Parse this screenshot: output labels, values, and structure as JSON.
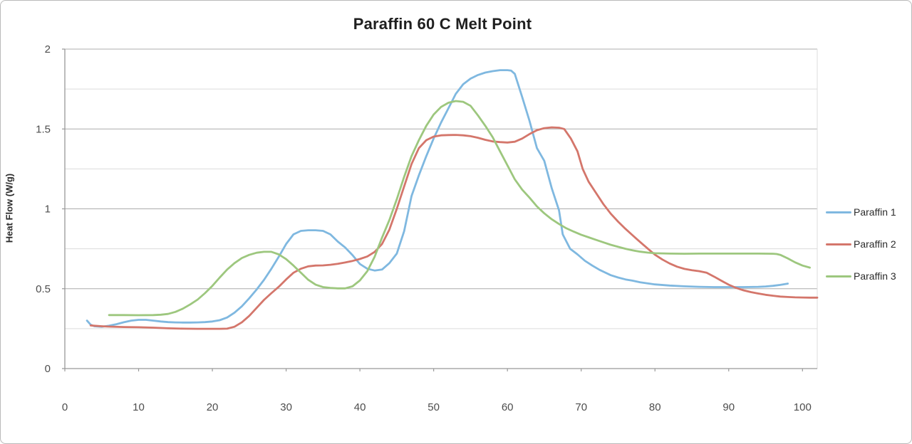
{
  "chart_data": {
    "type": "line",
    "title": "Paraffin 60 C Melt Point",
    "xlabel": "",
    "ylabel": "Heat Flow (W/g)",
    "xlim": [
      0,
      102
    ],
    "ylim": [
      0,
      2
    ],
    "grid": "horizontal, minor every 0.25, major every 0.5",
    "legend_position": "right",
    "x_ticks": [
      0,
      10,
      20,
      30,
      40,
      50,
      60,
      70,
      80,
      90,
      100
    ],
    "y_ticks": [
      {
        "value": 0,
        "label": "0"
      },
      {
        "value": 0.5,
        "label": "0.5"
      },
      {
        "value": 1,
        "label": "1"
      },
      {
        "value": 1.5,
        "label": "1.5"
      },
      {
        "value": 2,
        "label": "2"
      }
    ],
    "minor_y_gridlines": [
      0.25,
      0.75,
      1.25,
      1.75
    ],
    "colors": {
      "axis": "#999999",
      "major_grid": "#acacac",
      "minor_grid": "#dcdcdc",
      "tick_text": "#4d4d4d"
    },
    "series": [
      {
        "name": "Paraffin 1",
        "color": "#7fb8e0",
        "points": [
          [
            3,
            0.3
          ],
          [
            3.5,
            0.275
          ],
          [
            4,
            0.265
          ],
          [
            5,
            0.262
          ],
          [
            6,
            0.268
          ],
          [
            7,
            0.278
          ],
          [
            8,
            0.29
          ],
          [
            9,
            0.3
          ],
          [
            10,
            0.305
          ],
          [
            11,
            0.305
          ],
          [
            12,
            0.3
          ],
          [
            13,
            0.295
          ],
          [
            14,
            0.291
          ],
          [
            15,
            0.289
          ],
          [
            16,
            0.288
          ],
          [
            17,
            0.288
          ],
          [
            18,
            0.289
          ],
          [
            19,
            0.291
          ],
          [
            20,
            0.295
          ],
          [
            21,
            0.303
          ],
          [
            22,
            0.32
          ],
          [
            23,
            0.35
          ],
          [
            24,
            0.39
          ],
          [
            25,
            0.44
          ],
          [
            26,
            0.495
          ],
          [
            27,
            0.555
          ],
          [
            28,
            0.625
          ],
          [
            29,
            0.7
          ],
          [
            30,
            0.78
          ],
          [
            31,
            0.84
          ],
          [
            32,
            0.862
          ],
          [
            33,
            0.866
          ],
          [
            34,
            0.866
          ],
          [
            35,
            0.862
          ],
          [
            36,
            0.84
          ],
          [
            37,
            0.795
          ],
          [
            38,
            0.758
          ],
          [
            39,
            0.71
          ],
          [
            40,
            0.655
          ],
          [
            41,
            0.625
          ],
          [
            42,
            0.614
          ],
          [
            43,
            0.62
          ],
          [
            44,
            0.66
          ],
          [
            45,
            0.72
          ],
          [
            46,
            0.86
          ],
          [
            47,
            1.08
          ],
          [
            48,
            1.21
          ],
          [
            49,
            1.33
          ],
          [
            50,
            1.44
          ],
          [
            51,
            1.54
          ],
          [
            52,
            1.63
          ],
          [
            53,
            1.72
          ],
          [
            54,
            1.78
          ],
          [
            55,
            1.815
          ],
          [
            56,
            1.838
          ],
          [
            57,
            1.853
          ],
          [
            58,
            1.862
          ],
          [
            59,
            1.868
          ],
          [
            60,
            1.868
          ],
          [
            60.5,
            1.865
          ],
          [
            61,
            1.845
          ],
          [
            62,
            1.7
          ],
          [
            63,
            1.55
          ],
          [
            64,
            1.38
          ],
          [
            65,
            1.3
          ],
          [
            66,
            1.13
          ],
          [
            67,
            0.99
          ],
          [
            67.5,
            0.84
          ],
          [
            68.5,
            0.75
          ],
          [
            69.5,
            0.715
          ],
          [
            70.5,
            0.675
          ],
          [
            71.5,
            0.645
          ],
          [
            72.5,
            0.618
          ],
          [
            74,
            0.585
          ],
          [
            75,
            0.57
          ],
          [
            76,
            0.558
          ],
          [
            77,
            0.55
          ],
          [
            78,
            0.54
          ],
          [
            79,
            0.533
          ],
          [
            80,
            0.527
          ],
          [
            82,
            0.52
          ],
          [
            84,
            0.515
          ],
          [
            86,
            0.512
          ],
          [
            88,
            0.51
          ],
          [
            90,
            0.51
          ],
          [
            92,
            0.51
          ],
          [
            94,
            0.512
          ],
          [
            95,
            0.514
          ],
          [
            96,
            0.518
          ],
          [
            97,
            0.524
          ],
          [
            98,
            0.532
          ]
        ]
      },
      {
        "name": "Paraffin 2",
        "color": "#d4766b",
        "points": [
          [
            3.5,
            0.27
          ],
          [
            4,
            0.268
          ],
          [
            5,
            0.265
          ],
          [
            6,
            0.263
          ],
          [
            8,
            0.26
          ],
          [
            10,
            0.259
          ],
          [
            12,
            0.256
          ],
          [
            14,
            0.252
          ],
          [
            16,
            0.25
          ],
          [
            18,
            0.249
          ],
          [
            20,
            0.249
          ],
          [
            21,
            0.249
          ],
          [
            22,
            0.25
          ],
          [
            23,
            0.262
          ],
          [
            24,
            0.29
          ],
          [
            25,
            0.33
          ],
          [
            26,
            0.38
          ],
          [
            27,
            0.43
          ],
          [
            28,
            0.472
          ],
          [
            29,
            0.512
          ],
          [
            30,
            0.558
          ],
          [
            31,
            0.6
          ],
          [
            32,
            0.625
          ],
          [
            33,
            0.64
          ],
          [
            34,
            0.645
          ],
          [
            35,
            0.646
          ],
          [
            36,
            0.65
          ],
          [
            37,
            0.656
          ],
          [
            38,
            0.664
          ],
          [
            39,
            0.674
          ],
          [
            40,
            0.686
          ],
          [
            41,
            0.702
          ],
          [
            42,
            0.73
          ],
          [
            43,
            0.78
          ],
          [
            44,
            0.87
          ],
          [
            45,
            1.0
          ],
          [
            46,
            1.14
          ],
          [
            47,
            1.28
          ],
          [
            48,
            1.38
          ],
          [
            49,
            1.43
          ],
          [
            50,
            1.452
          ],
          [
            51,
            1.46
          ],
          [
            52,
            1.462
          ],
          [
            53,
            1.463
          ],
          [
            54,
            1.46
          ],
          [
            55,
            1.455
          ],
          [
            56,
            1.445
          ],
          [
            57,
            1.432
          ],
          [
            58,
            1.422
          ],
          [
            59,
            1.418
          ],
          [
            60,
            1.415
          ],
          [
            61,
            1.42
          ],
          [
            62,
            1.44
          ],
          [
            63,
            1.468
          ],
          [
            64,
            1.492
          ],
          [
            65,
            1.505
          ],
          [
            66,
            1.51
          ],
          [
            67,
            1.508
          ],
          [
            67.7,
            1.5
          ],
          [
            68.6,
            1.44
          ],
          [
            69.5,
            1.36
          ],
          [
            70.2,
            1.25
          ],
          [
            71,
            1.17
          ],
          [
            72,
            1.1
          ],
          [
            73,
            1.03
          ],
          [
            74,
            0.97
          ],
          [
            75,
            0.92
          ],
          [
            76,
            0.875
          ],
          [
            77,
            0.833
          ],
          [
            78,
            0.792
          ],
          [
            79,
            0.752
          ],
          [
            80,
            0.713
          ],
          [
            81,
            0.683
          ],
          [
            82,
            0.658
          ],
          [
            83,
            0.638
          ],
          [
            84,
            0.624
          ],
          [
            85,
            0.616
          ],
          [
            86,
            0.61
          ],
          [
            87,
            0.6
          ],
          [
            88,
            0.576
          ],
          [
            89,
            0.55
          ],
          [
            90,
            0.525
          ],
          [
            91,
            0.505
          ],
          [
            92,
            0.49
          ],
          [
            93,
            0.479
          ],
          [
            94,
            0.47
          ],
          [
            95,
            0.462
          ],
          [
            96,
            0.456
          ],
          [
            97,
            0.451
          ],
          [
            98,
            0.448
          ],
          [
            99,
            0.446
          ],
          [
            100,
            0.445
          ],
          [
            101,
            0.444
          ],
          [
            102,
            0.444
          ]
        ]
      },
      {
        "name": "Paraffin 3",
        "color": "#9dc77e",
        "points": [
          [
            6,
            0.335
          ],
          [
            8,
            0.335
          ],
          [
            10,
            0.334
          ],
          [
            12,
            0.335
          ],
          [
            13,
            0.337
          ],
          [
            14,
            0.342
          ],
          [
            15,
            0.355
          ],
          [
            16,
            0.375
          ],
          [
            17,
            0.402
          ],
          [
            18,
            0.432
          ],
          [
            19,
            0.472
          ],
          [
            20,
            0.518
          ],
          [
            21,
            0.57
          ],
          [
            22,
            0.62
          ],
          [
            23,
            0.66
          ],
          [
            24,
            0.692
          ],
          [
            25,
            0.712
          ],
          [
            26,
            0.725
          ],
          [
            27,
            0.731
          ],
          [
            28,
            0.731
          ],
          [
            29,
            0.715
          ],
          [
            30,
            0.685
          ],
          [
            31,
            0.645
          ],
          [
            32,
            0.6
          ],
          [
            33,
            0.556
          ],
          [
            34,
            0.525
          ],
          [
            35,
            0.51
          ],
          [
            36,
            0.505
          ],
          [
            37,
            0.502
          ],
          [
            38,
            0.502
          ],
          [
            39,
            0.515
          ],
          [
            40,
            0.552
          ],
          [
            41,
            0.61
          ],
          [
            42,
            0.7
          ],
          [
            43,
            0.82
          ],
          [
            44,
            0.93
          ],
          [
            45,
            1.06
          ],
          [
            46,
            1.2
          ],
          [
            47,
            1.33
          ],
          [
            48,
            1.43
          ],
          [
            49,
            1.52
          ],
          [
            50,
            1.59
          ],
          [
            51,
            1.638
          ],
          [
            52,
            1.664
          ],
          [
            53,
            1.675
          ],
          [
            54,
            1.67
          ],
          [
            55,
            1.645
          ],
          [
            56,
            1.585
          ],
          [
            57,
            1.52
          ],
          [
            58,
            1.448
          ],
          [
            59,
            1.36
          ],
          [
            60,
            1.272
          ],
          [
            61,
            1.185
          ],
          [
            62,
            1.12
          ],
          [
            63,
            1.07
          ],
          [
            64,
            1.015
          ],
          [
            65,
            0.972
          ],
          [
            66,
            0.935
          ],
          [
            67,
            0.905
          ],
          [
            68,
            0.878
          ],
          [
            69,
            0.857
          ],
          [
            70,
            0.838
          ],
          [
            71,
            0.822
          ],
          [
            72,
            0.806
          ],
          [
            73,
            0.79
          ],
          [
            74,
            0.775
          ],
          [
            75,
            0.762
          ],
          [
            76,
            0.75
          ],
          [
            77,
            0.74
          ],
          [
            78,
            0.732
          ],
          [
            79,
            0.726
          ],
          [
            80,
            0.722
          ],
          [
            82,
            0.72
          ],
          [
            84,
            0.719
          ],
          [
            86,
            0.72
          ],
          [
            88,
            0.72
          ],
          [
            90,
            0.72
          ],
          [
            92,
            0.72
          ],
          [
            94,
            0.72
          ],
          [
            96,
            0.719
          ],
          [
            96.5,
            0.717
          ],
          [
            97,
            0.712
          ],
          [
            98,
            0.69
          ],
          [
            99,
            0.665
          ],
          [
            100,
            0.645
          ],
          [
            101,
            0.632
          ]
        ]
      }
    ]
  }
}
